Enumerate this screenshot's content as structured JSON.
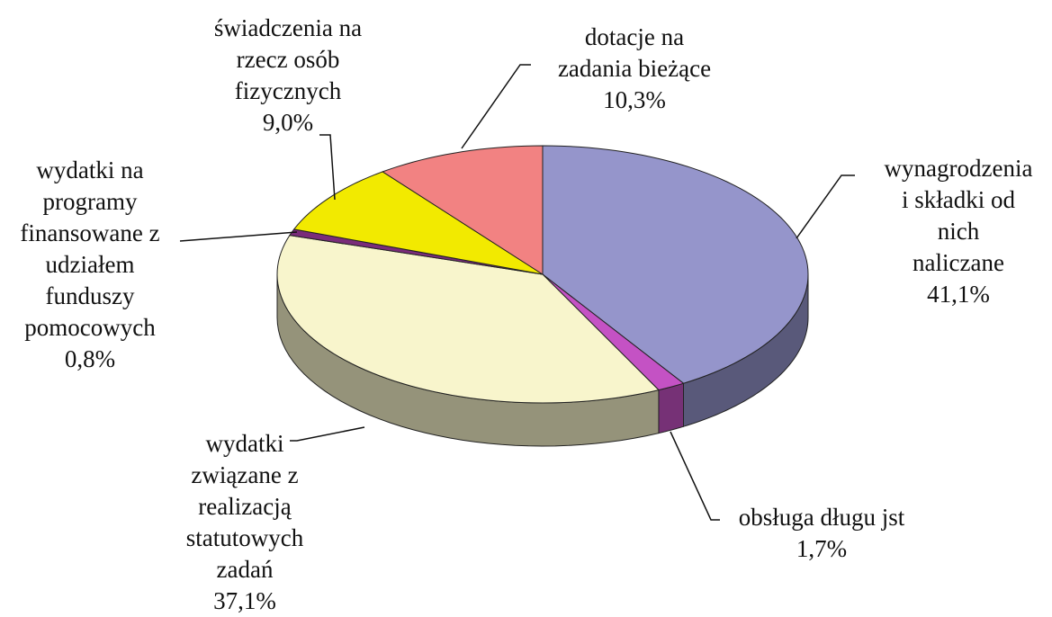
{
  "chart_data": {
    "type": "pie",
    "categories": [
      "wynagrodzenia\ni składki od nich\nnaliczane",
      "obsługa długu jst",
      "wydatki\nzwiązane z\nrealizacją\nstatutowych\nzadań",
      "wydatki na\nprogramy\nfinansowane z\nudziałem\nfunduszy\npomocowych",
      "świadczenia na\nrzecz osób\nfizycznych",
      "dotacje na\nzadania bieżące"
    ],
    "values": [
      41.1,
      1.7,
      37.1,
      0.8,
      9.0,
      10.3
    ],
    "value_labels": [
      "41,1%",
      "1,7%",
      "37,1%",
      "0,8%",
      "9,0%",
      "10,3%"
    ],
    "colors": [
      "#9595cb",
      "#c452c4",
      "#f8f5cc",
      "#7a2c7a",
      "#f2ea00",
      "#f28282"
    ]
  }
}
